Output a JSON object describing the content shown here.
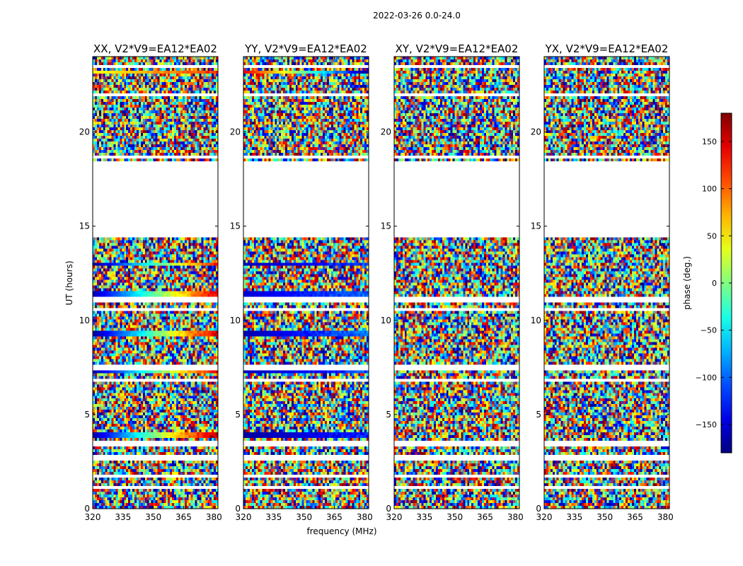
{
  "chart_data": {
    "type": "heatmap",
    "title": "2022-03-26 0.0-24.0",
    "xlabel": "frequency (MHz)",
    "ylabel": "UT (hours)",
    "colorbar_label": "phase (deg.)",
    "xlim": [
      320,
      382
    ],
    "ylim": [
      0,
      24
    ],
    "x_ticks": [
      320,
      335,
      350,
      365,
      380
    ],
    "y_ticks": [
      0,
      5,
      10,
      15,
      20
    ],
    "colorbar_range": [
      -180,
      180
    ],
    "colorbar_ticks": [
      -150,
      -100,
      -50,
      0,
      50,
      100,
      150
    ],
    "colorbar_tick_labels": [
      "−150",
      "−100",
      "−50",
      "0",
      "50",
      "100",
      "150"
    ],
    "colormap": "jet",
    "flagged_bands_hours": [
      [
        0.95,
        1.1
      ],
      [
        1.55,
        1.8
      ],
      [
        2.55,
        2.75
      ],
      [
        3.3,
        3.6
      ],
      [
        6.65,
        6.85
      ],
      [
        7.35,
        7.55
      ],
      [
        10.5,
        10.7
      ],
      [
        11.0,
        11.2
      ],
      [
        14.35,
        18.4
      ],
      [
        18.6,
        18.75
      ],
      [
        21.9,
        22.05
      ],
      [
        23.35,
        23.55
      ]
    ],
    "panels": [
      {
        "title": "XX, V2*V9=EA12*EA02",
        "polarization": "XX",
        "structured_bands": [
          {
            "hours": [
              9.2,
              9.5
            ],
            "start_value": -170,
            "end_value": 150
          },
          {
            "hours": [
              7.1,
              7.3
            ],
            "start_value": -165,
            "end_value": 140
          },
          {
            "hours": [
              11.3,
              11.5
            ],
            "start_value": -160,
            "end_value": 145
          },
          {
            "hours": [
              12.9,
              13.1
            ],
            "start_value": -175,
            "end_value": 130
          },
          {
            "hours": [
              3.75,
              3.95
            ],
            "start_value": -165,
            "end_value": 170
          },
          {
            "hours": [
              23.05,
              23.2
            ],
            "start_value": 40,
            "end_value": 120
          }
        ]
      },
      {
        "title": "YY, V2*V9=EA12*EA02",
        "polarization": "YY",
        "structured_bands": [
          {
            "hours": [
              9.2,
              9.5
            ],
            "start_value": -165,
            "end_value": -90
          },
          {
            "hours": [
              7.1,
              7.3
            ],
            "start_value": -160,
            "end_value": -110
          },
          {
            "hours": [
              11.3,
              11.5
            ],
            "start_value": -150,
            "end_value": -100
          },
          {
            "hours": [
              12.9,
              13.1
            ],
            "start_value": -160,
            "end_value": -110
          },
          {
            "hours": [
              3.75,
              3.95
            ],
            "start_value": -170,
            "end_value": -120
          },
          {
            "hours": [
              23.05,
              23.2
            ],
            "start_value": 140,
            "end_value": -170
          }
        ]
      },
      {
        "title": "XY, V2*V9=EA12*EA02",
        "polarization": "XY",
        "structured_bands": []
      },
      {
        "title": "YX, V2*V9=EA12*EA02",
        "polarization": "YX",
        "structured_bands": []
      }
    ]
  }
}
